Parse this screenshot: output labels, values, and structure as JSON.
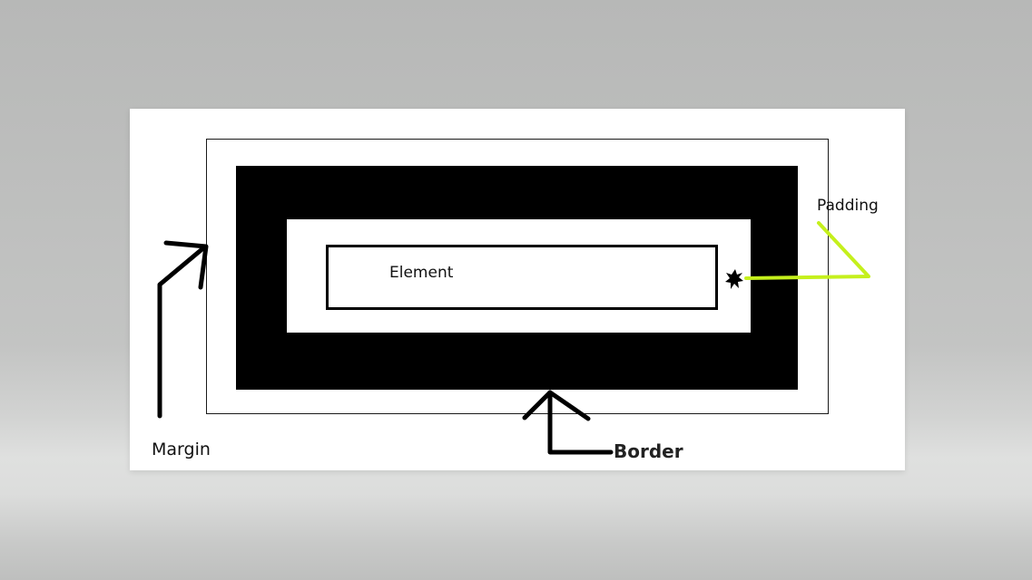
{
  "labels": {
    "element": "Element",
    "margin": "Margin",
    "border": "Border",
    "padding": "Padding"
  },
  "colors": {
    "border_fill": "#000000",
    "padding_pointer": "#c5f01c",
    "ink": "#000000",
    "background": "#b7b8b7"
  },
  "icons": {
    "margin_pointer": "arrow-up-right-icon",
    "border_pointer": "arrow-up-icon",
    "padding_pointer": "callout-line-icon",
    "padding_marker": "starburst-icon"
  }
}
